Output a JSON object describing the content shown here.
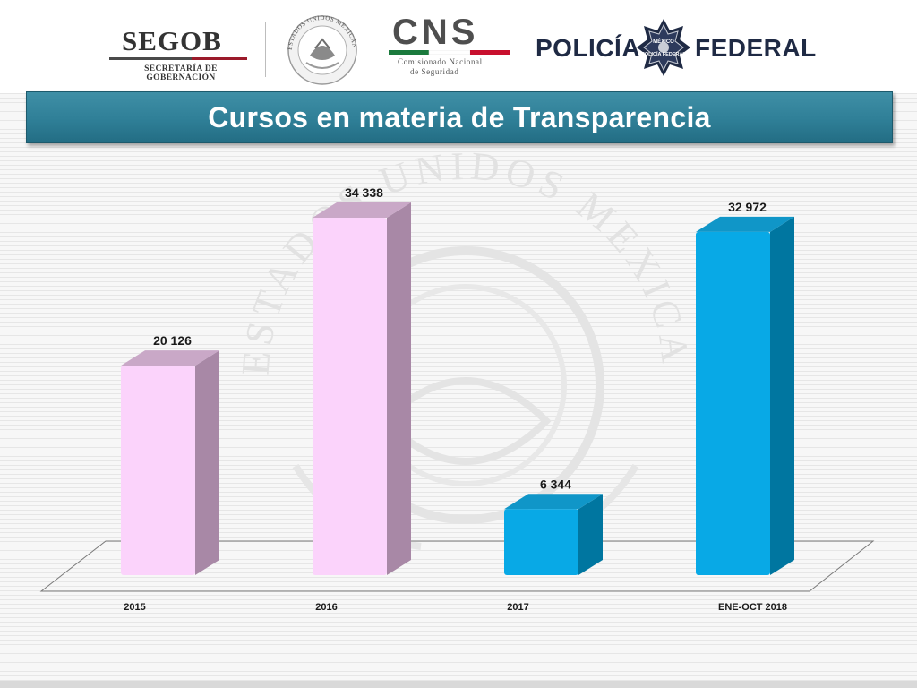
{
  "header": {
    "segob": {
      "name": "SEGOB",
      "tagline": "SECRETARÍA DE GOBERNACIÓN"
    },
    "seal": {
      "icon": "mexican-coat-of-arms-seal",
      "ring_text": "ESTADOS UNIDOS MEXICANOS"
    },
    "cns": {
      "name": "CNS",
      "sub_line_1": "Comisionado Nacional",
      "sub_line_2": "de Seguridad"
    },
    "policia_federal": {
      "left_word": "POLICÍA",
      "right_word": "FEDERAL",
      "badge_line_1": "MÉXICO",
      "badge_line_2": "POLICÍA FEDERAL"
    }
  },
  "title": "Cursos en materia de Transparencia",
  "watermark_text": "ESTADOS UNIDOS MEXICANOS",
  "colors": {
    "title_bar": "#2f7f97",
    "bar_pink_front": "#fbd3fb",
    "bar_pink_side": "#a888a6",
    "bar_pink_top": "#c9a8c7",
    "bar_blue_front": "#08a9e6",
    "bar_blue_side": "#0076a0",
    "bar_blue_top": "#1096c8"
  },
  "chart_data": {
    "type": "bar",
    "title": "Cursos en materia de Transparencia",
    "categories": [
      "2015",
      "2016",
      "2017",
      "ENE-OCT 2018"
    ],
    "values": [
      20126,
      34338,
      6344,
      32972
    ],
    "value_labels": [
      "20 126",
      "34 338",
      "6 344",
      "32 972"
    ],
    "bar_colors": [
      "pink",
      "pink",
      "blue",
      "blue"
    ],
    "style": "3d-column",
    "xlabel": "",
    "ylabel": "",
    "ylim": [
      0,
      34338
    ],
    "grid": false,
    "legend": "none"
  }
}
